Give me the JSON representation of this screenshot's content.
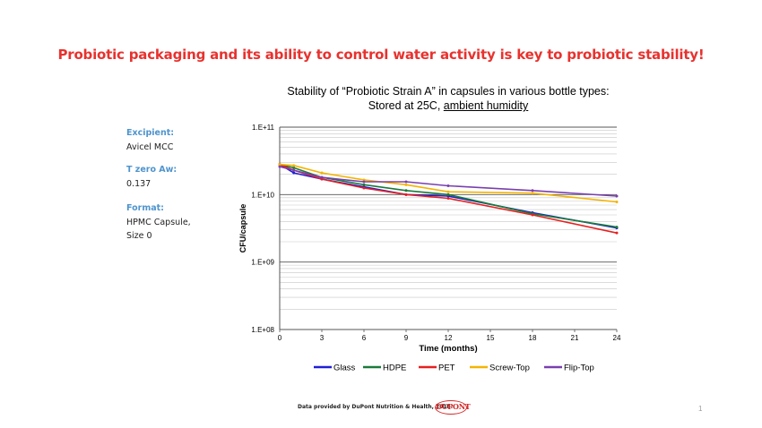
{
  "headline": "Probiotic packaging and its ability to control water activity is key to probiotic stability!",
  "sidebar": {
    "items": [
      {
        "label": "Excipient:",
        "lines": [
          "Avicel MCC"
        ]
      },
      {
        "label": "T zero Aw:",
        "lines": [
          "0.137"
        ]
      },
      {
        "label": "Format:",
        "lines": [
          "HPMC Capsule,",
          "Size 0"
        ]
      }
    ]
  },
  "footer": {
    "text": "Data provided by DuPont Nutrition & Health, 2018.",
    "logo_text": "DUPONT",
    "page_number": "1"
  },
  "chart_data": {
    "type": "line",
    "title_line1": "Stability of “Probiotic Strain A” in capsules in various bottle types:",
    "title_line2_prefix": "Stored at 25C, ",
    "title_line2_underlined": "ambient humidity",
    "xlabel": "Time (months)",
    "ylabel": "CFU/capsule",
    "y_scale": "log",
    "ylim": [
      100000000,
      100000000000
    ],
    "xlim": [
      0,
      24
    ],
    "x_ticks": [
      0,
      3,
      6,
      9,
      12,
      15,
      18,
      21,
      24
    ],
    "y_ticks": [
      {
        "value": 100000000000,
        "label": "1.E+11"
      },
      {
        "value": 10000000000,
        "label": "1.E+10"
      },
      {
        "value": 1000000000,
        "label": "1.E+09"
      },
      {
        "value": 100000000,
        "label": "1.E+08"
      }
    ],
    "grid": true,
    "legend_position": "bottom",
    "series": [
      {
        "name": "Glass",
        "color": "#1f1fd6",
        "x": [
          0,
          1,
          3,
          6,
          9,
          12,
          18,
          24
        ],
        "y": [
          28000000000,
          21000000000,
          17000000000,
          13000000000,
          10000000000,
          9500000000,
          5400000000,
          3200000000
        ]
      },
      {
        "name": "HDPE",
        "color": "#1a7a3a",
        "x": [
          0,
          1,
          3,
          6,
          9,
          12,
          18,
          24
        ],
        "y": [
          28000000000,
          25000000000,
          18000000000,
          14000000000,
          11500000000,
          10000000000,
          5200000000,
          3300000000
        ]
      },
      {
        "name": "PET",
        "color": "#e62020",
        "x": [
          0,
          1,
          3,
          6,
          9,
          12,
          18,
          24
        ],
        "y": [
          28000000000,
          23000000000,
          17000000000,
          12500000000,
          10000000000,
          8800000000,
          5000000000,
          2700000000
        ]
      },
      {
        "name": "Screw-Top",
        "color": "#f4b400",
        "x": [
          0,
          1,
          3,
          6,
          9,
          12,
          18,
          24
        ],
        "y": [
          28000000000,
          27000000000,
          21000000000,
          16500000000,
          14000000000,
          11000000000,
          10500000000,
          7800000000
        ]
      },
      {
        "name": "Flip-Top",
        "color": "#7a3fb0",
        "x": [
          0,
          1,
          3,
          6,
          9,
          12,
          18,
          24
        ],
        "y": [
          26000000000,
          23000000000,
          18000000000,
          15500000000,
          15500000000,
          13500000000,
          11500000000,
          9500000000
        ]
      }
    ]
  }
}
